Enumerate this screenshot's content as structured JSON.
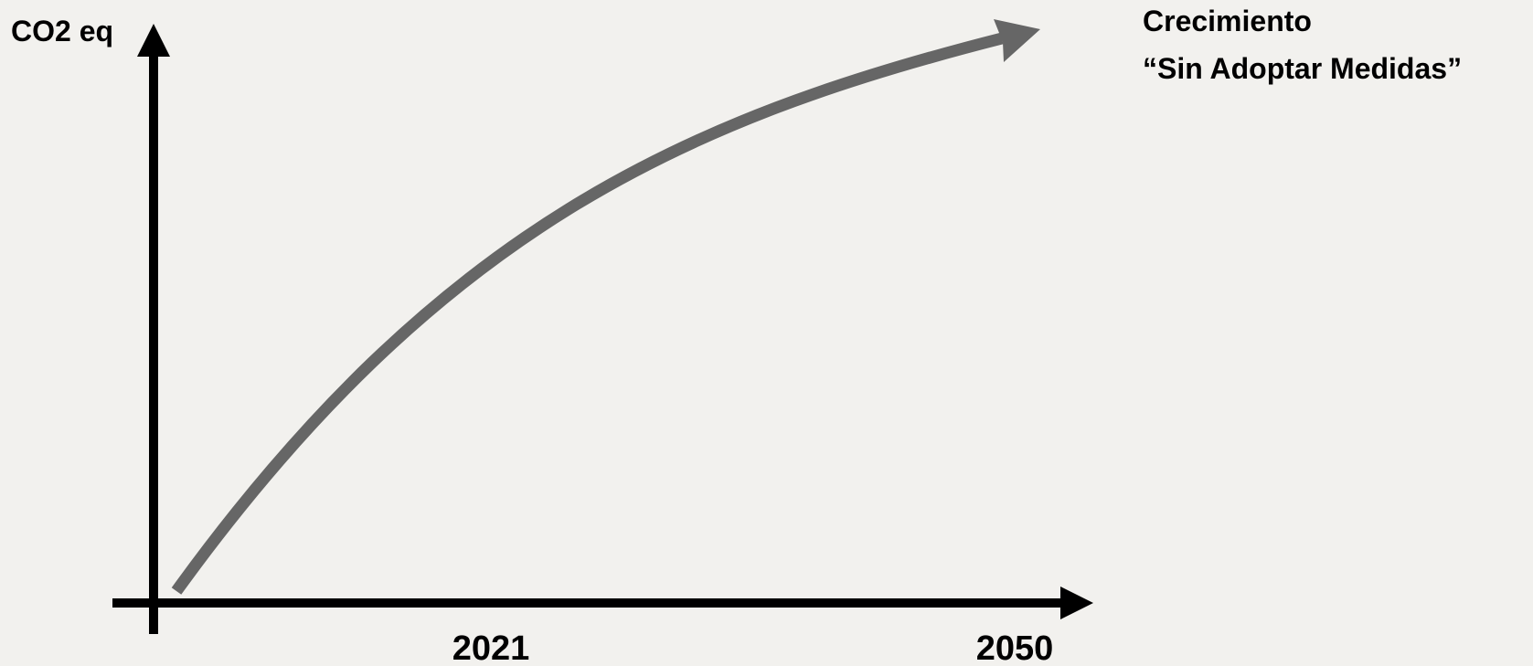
{
  "chart_data": {
    "type": "line",
    "ylabel": "CO2 eq",
    "xlabel": "",
    "x_ticks": [
      "2021",
      "2050"
    ],
    "series": [
      {
        "name": "Crecimiento “Sin Adoptar Medidas”",
        "name_lines": [
          "Crecimiento",
          "“Sin Adoptar Medidas”"
        ],
        "shape": "concave increasing curve"
      }
    ],
    "grid": false,
    "legend": "top-right"
  },
  "colors": {
    "background": "#f2f1ee",
    "axes": "#000000",
    "series_line": "#666666"
  }
}
